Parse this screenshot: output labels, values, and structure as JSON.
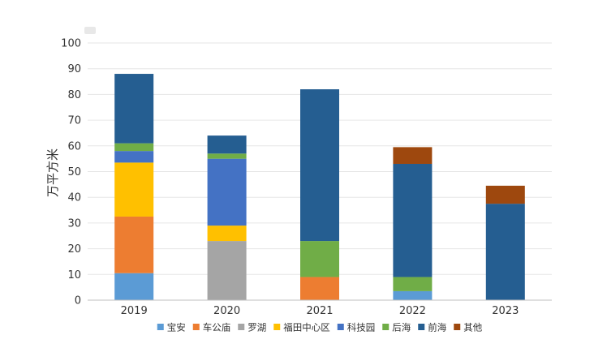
{
  "chart_data": {
    "type": "bar",
    "stacked": true,
    "title": "",
    "xlabel": "",
    "ylabel": "万平方米",
    "ylim": [
      0,
      100
    ],
    "yticks": [
      0,
      10,
      20,
      30,
      40,
      50,
      60,
      70,
      80,
      90,
      100
    ],
    "grid": true,
    "legend_position": "bottom",
    "categories": [
      "2019",
      "2020",
      "2021",
      "2022",
      "2023"
    ],
    "series": [
      {
        "name": "宝安",
        "color": "#5b9bd5",
        "values": [
          10.5,
          0,
          0,
          3.5,
          0
        ]
      },
      {
        "name": "车公庙",
        "color": "#ed7d31",
        "values": [
          22,
          0,
          9,
          0,
          0
        ]
      },
      {
        "name": "罗湖",
        "color": "#a5a5a5",
        "values": [
          0,
          23,
          0,
          0,
          0
        ]
      },
      {
        "name": "福田中心区",
        "color": "#ffc000",
        "values": [
          21,
          6,
          0,
          0,
          0
        ]
      },
      {
        "name": "科技园",
        "color": "#4472c4",
        "values": [
          4.5,
          26,
          0,
          0,
          0
        ]
      },
      {
        "name": "后海",
        "color": "#70ad47",
        "values": [
          3,
          2,
          14,
          5.5,
          0
        ]
      },
      {
        "name": "前海",
        "color": "#255e91",
        "values": [
          27,
          7,
          59,
          44,
          37.5
        ]
      },
      {
        "name": "其他",
        "color": "#9e480e",
        "values": [
          0,
          0,
          0,
          6.5,
          7
        ]
      }
    ]
  }
}
